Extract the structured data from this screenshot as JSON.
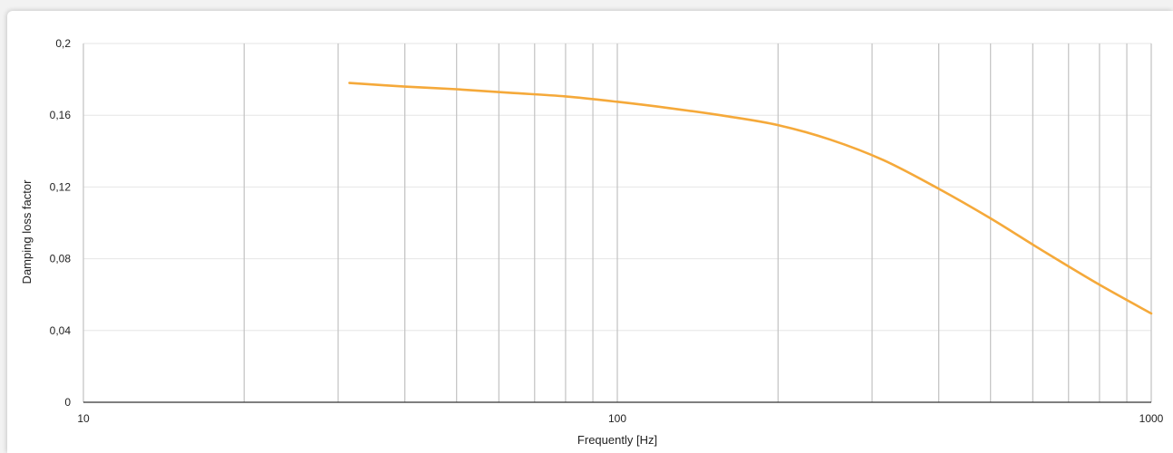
{
  "chart_data": {
    "type": "line",
    "title": "",
    "xlabel": "Frequently [Hz]",
    "ylabel": "Damping loss factor",
    "x_scale": "log",
    "xlim": [
      10,
      1000
    ],
    "ylim": [
      0,
      0.2
    ],
    "x_tick_labels": [
      {
        "value": 10,
        "label": "10"
      },
      {
        "value": 100,
        "label": "100"
      },
      {
        "value": 1000,
        "label": "1000"
      }
    ],
    "y_tick_labels": [
      {
        "value": 0,
        "label": "0"
      },
      {
        "value": 0.04,
        "label": "0,04"
      },
      {
        "value": 0.08,
        "label": "0,08"
      },
      {
        "value": 0.12,
        "label": "0,12"
      },
      {
        "value": 0.16,
        "label": "0,16"
      },
      {
        "value": 0.2,
        "label": "0,2"
      }
    ],
    "x_gridlines": [
      10,
      20,
      30,
      40,
      50,
      60,
      70,
      80,
      90,
      100,
      200,
      300,
      400,
      500,
      600,
      700,
      800,
      900,
      1000
    ],
    "y_gridlines": [
      0.04,
      0.08,
      0.12,
      0.16,
      0.2
    ],
    "grid": true,
    "series": [
      {
        "color": "#f5a93a",
        "x": [
          31.5,
          40,
          50,
          63,
          80,
          100,
          125,
          160,
          200,
          250,
          315,
          400,
          500,
          630,
          800,
          1000
        ],
        "y": [
          0.178,
          0.176,
          0.1745,
          0.1725,
          0.1705,
          0.1675,
          0.164,
          0.1595,
          0.1545,
          0.1465,
          0.135,
          0.119,
          0.1025,
          0.084,
          0.0655,
          0.0495
        ]
      }
    ]
  }
}
